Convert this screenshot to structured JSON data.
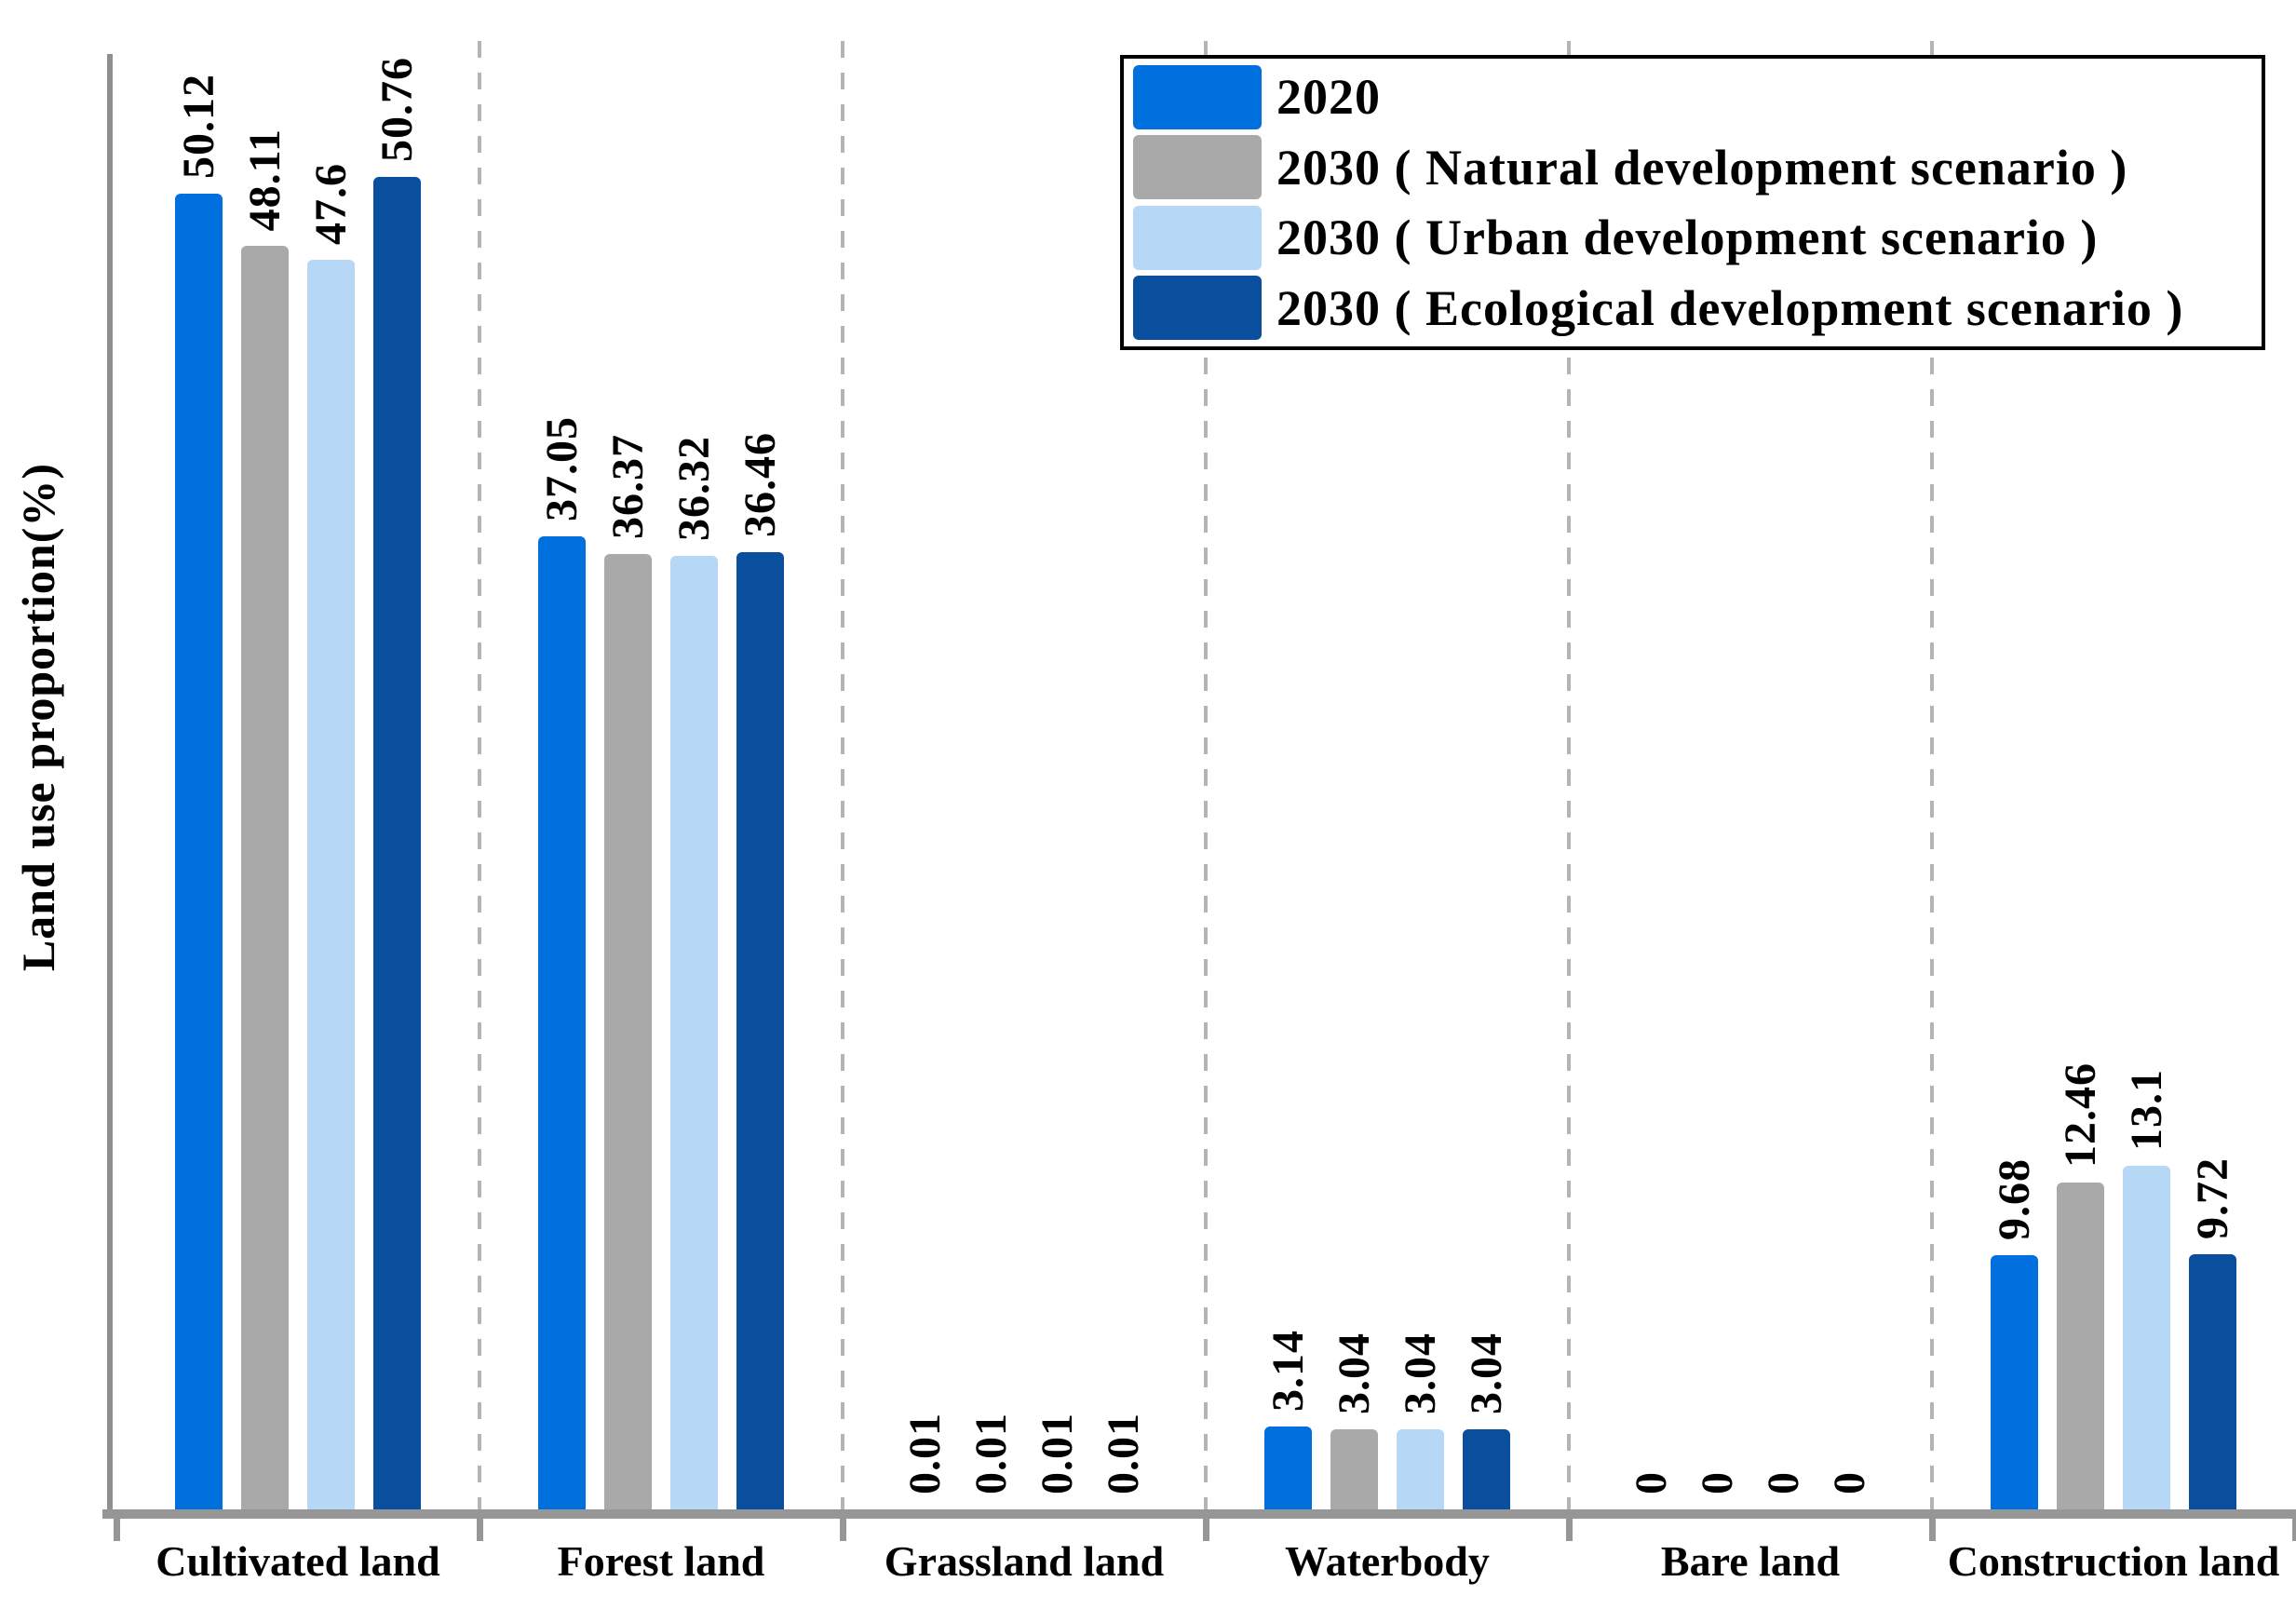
{
  "chart_data": {
    "type": "bar",
    "title": "",
    "xlabel": "",
    "ylabel": "Land use proportion(%)",
    "ylim": [
      0,
      56
    ],
    "grid": "vertical dashed separators between categories",
    "legend_position": "top-right",
    "value_labels": "rotated 90deg above each bar",
    "categories": [
      "Cultivated land",
      "Forest land",
      "Grassland land",
      "Waterbody",
      "Bare land",
      "Construction land"
    ],
    "series": [
      {
        "name": "2020",
        "color": "#0070DE",
        "values": [
          50.12,
          37.05,
          0.01,
          3.14,
          0,
          9.68
        ]
      },
      {
        "name": "2030 ( Natural development scenario )",
        "color": "#A9A9A9",
        "values": [
          48.11,
          36.37,
          0.01,
          3.04,
          0,
          12.46
        ]
      },
      {
        "name": "2030 ( Urban development scenario )",
        "color": "#B7D7F6",
        "values": [
          47.6,
          36.32,
          0.01,
          3.04,
          0,
          13.1
        ]
      },
      {
        "name": "2030 ( Ecological development scenario )",
        "color": "#0A4E9E",
        "values": [
          50.76,
          36.46,
          0.01,
          3.04,
          0,
          9.72
        ]
      }
    ]
  },
  "axis_colors": {
    "line": "#969696",
    "separator": "#B4B4B4"
  }
}
